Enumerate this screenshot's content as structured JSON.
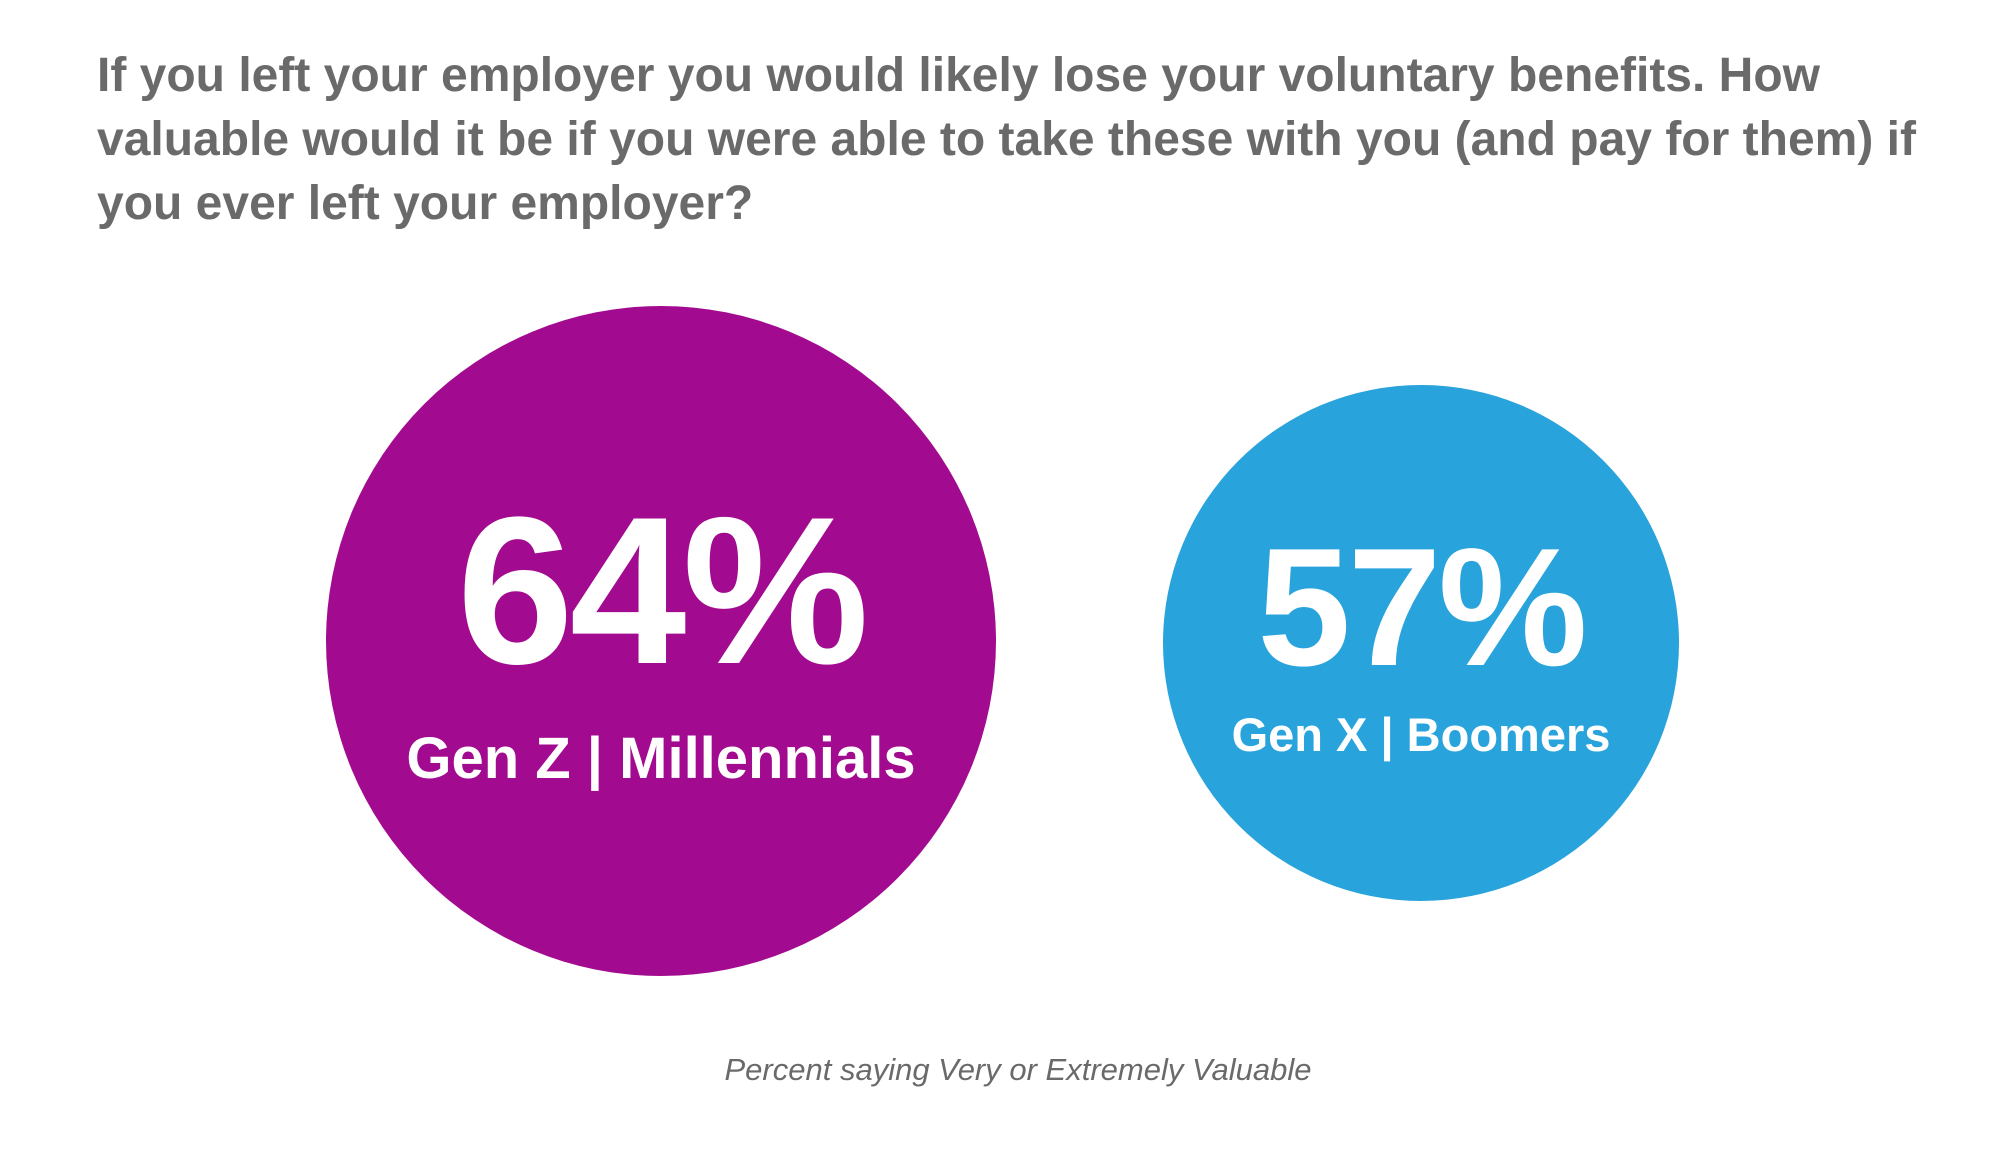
{
  "question": "If you left your employer you would likely lose your voluntary benefits. How valuable would it be if you were able to take these with you (and pay for them) if you ever left your employer?",
  "footnote": "Percent saying Very or Extremely Valuable",
  "chart_data": {
    "type": "bubble",
    "title": "If you left your employer you would likely lose your voluntary benefits. How valuable would it be if you were able to take these with you (and pay for them) if you ever left your employer?",
    "note": "Percent saying Very or Extremely Valuable",
    "categories": [
      "Gen Z | Millennials",
      "Gen X | Boomers"
    ],
    "values": [
      64,
      57
    ],
    "value_labels": [
      "64%",
      "57%"
    ],
    "unit": "%",
    "colors": [
      "#a20b8f",
      "#29a3dc"
    ]
  }
}
